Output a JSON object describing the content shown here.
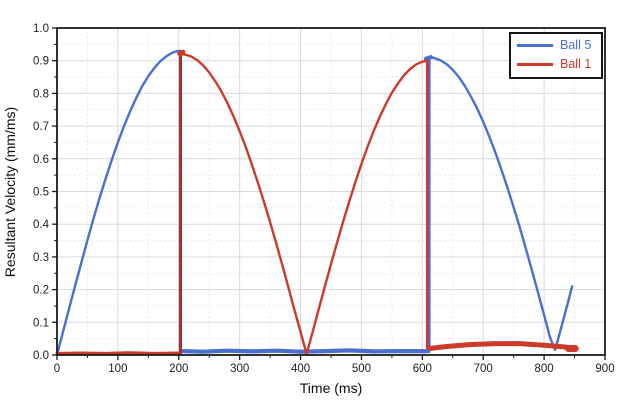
{
  "chart_data": {
    "type": "line",
    "xlabel": "Time (ms)",
    "ylabel": "Resultant Velocity (mm/ms)",
    "xlim": [
      0,
      900
    ],
    "ylim": [
      0,
      1.0
    ],
    "x_ticks": [
      0,
      100,
      200,
      300,
      400,
      500,
      600,
      700,
      800,
      900
    ],
    "y_ticks": [
      "0.0",
      "0.1",
      "0.2",
      "0.3",
      "0.4",
      "0.5",
      "0.6",
      "0.7",
      "0.8",
      "0.9",
      "1.0"
    ],
    "x_minor_step": 50,
    "y_minor_step": 0.05,
    "grid": "major-solid-minor-dotted",
    "legend_position": "top-right",
    "legend": {
      "items": [
        {
          "label": "Ball 5",
          "color": "#4a6fd1"
        },
        {
          "label": "Ball 1",
          "color": "#cd3a2a"
        }
      ]
    },
    "colors": {
      "ball5": "#4a6fd1",
      "ball1": "#cd3a2a",
      "spike_overlap": "#a83226",
      "grid_major": "#d7dade",
      "grid_minor": "#dfe4ee",
      "axis": "#1b1b1b",
      "tick_label": "#202020",
      "background": "#ffffff"
    },
    "series": [
      {
        "name": "Ball 5",
        "color": "#4a6fd1",
        "segments": [
          {
            "desc": "swing-down rise 0-203ms",
            "width": 2.4,
            "points": [
              [
                0,
                0
              ],
              [
                10,
                0.072
              ],
              [
                20,
                0.143
              ],
              [
                30,
                0.214
              ],
              [
                40,
                0.283
              ],
              [
                50,
                0.351
              ],
              [
                60,
                0.417
              ],
              [
                70,
                0.48
              ],
              [
                80,
                0.54
              ],
              [
                90,
                0.597
              ],
              [
                100,
                0.65
              ],
              [
                110,
                0.7
              ],
              [
                120,
                0.745
              ],
              [
                130,
                0.786
              ],
              [
                140,
                0.822
              ],
              [
                150,
                0.853
              ],
              [
                160,
                0.878
              ],
              [
                170,
                0.899
              ],
              [
                180,
                0.914
              ],
              [
                190,
                0.925
              ],
              [
                197,
                0.929
              ],
              [
                202,
                0.93
              ]
            ]
          },
          {
            "desc": "impact drop at 202ms",
            "width": 2.4,
            "points": [
              [
                202,
                0.93
              ],
              [
                202,
                0.012
              ]
            ]
          },
          {
            "desc": "rest band 204-610ms",
            "width": 4.2,
            "points": [
              [
                204,
                0.012
              ],
              [
                240,
                0.01
              ],
              [
                280,
                0.013
              ],
              [
                320,
                0.011
              ],
              [
                360,
                0.013
              ],
              [
                400,
                0.01
              ],
              [
                440,
                0.012
              ],
              [
                480,
                0.014
              ],
              [
                520,
                0.011
              ],
              [
                560,
                0.012
              ],
              [
                610,
                0.012
              ]
            ]
          },
          {
            "desc": "impact jump at 611ms",
            "width": 2.6,
            "points": [
              [
                611.5,
                0.013
              ],
              [
                611.5,
                0.91
              ]
            ]
          },
          {
            "desc": "cap blob at 611ms peak",
            "width": 4.2,
            "points": [
              [
                606,
                0.906
              ],
              [
                614,
                0.911
              ]
            ]
          },
          {
            "desc": "swing-up decay 612-818ms",
            "width": 2.4,
            "points": [
              [
                612,
                0.91
              ],
              [
                620,
                0.908
              ],
              [
                630,
                0.901
              ],
              [
                640,
                0.889
              ],
              [
                650,
                0.872
              ],
              [
                660,
                0.85
              ],
              [
                670,
                0.822
              ],
              [
                680,
                0.79
              ],
              [
                690,
                0.754
              ],
              [
                700,
                0.713
              ],
              [
                710,
                0.668
              ],
              [
                720,
                0.619
              ],
              [
                730,
                0.566
              ],
              [
                740,
                0.51
              ],
              [
                750,
                0.451
              ],
              [
                760,
                0.39
              ],
              [
                770,
                0.326
              ],
              [
                780,
                0.259
              ],
              [
                790,
                0.191
              ],
              [
                800,
                0.122
              ],
              [
                810,
                0.052
              ],
              [
                818,
                0.016
              ]
            ]
          },
          {
            "desc": "return rise 818-846ms",
            "width": 2.4,
            "points": [
              [
                818,
                0.016
              ],
              [
                825,
                0.062
              ],
              [
                832,
                0.111
              ],
              [
                839,
                0.16
              ],
              [
                846,
                0.21
              ]
            ]
          }
        ]
      },
      {
        "name": "Ball 1",
        "color": "#cd3a2a",
        "segments": [
          {
            "desc": "rest band 0-202ms",
            "width": 3,
            "points": [
              [
                0,
                0.005
              ],
              [
                40,
                0.006
              ],
              [
                80,
                0.005
              ],
              [
                120,
                0.007
              ],
              [
                160,
                0.005
              ],
              [
                202,
                0.006
              ]
            ]
          },
          {
            "desc": "impact spike at 202ms",
            "width": 3,
            "color": "#a83226",
            "points": [
              [
                202.8,
                0.006
              ],
              [
                202.8,
                0.922
              ]
            ]
          },
          {
            "desc": "cap blob at 202ms peak",
            "width": 4.5,
            "points": [
              [
                201,
                0.922
              ],
              [
                207,
                0.927
              ]
            ]
          },
          {
            "desc": "swing-up decay 204-410ms",
            "width": 2.4,
            "points": [
              [
                204,
                0.92
              ],
              [
                210,
                0.919
              ],
              [
                220,
                0.913
              ],
              [
                230,
                0.902
              ],
              [
                240,
                0.886
              ],
              [
                250,
                0.864
              ],
              [
                260,
                0.837
              ],
              [
                270,
                0.806
              ],
              [
                280,
                0.77
              ],
              [
                290,
                0.729
              ],
              [
                300,
                0.684
              ],
              [
                310,
                0.636
              ],
              [
                320,
                0.583
              ],
              [
                330,
                0.527
              ],
              [
                340,
                0.468
              ],
              [
                350,
                0.406
              ],
              [
                360,
                0.342
              ],
              [
                370,
                0.275
              ],
              [
                380,
                0.207
              ],
              [
                390,
                0.137
              ],
              [
                400,
                0.07
              ],
              [
                410,
                0.003
              ]
            ]
          },
          {
            "desc": "swing-down rise 410-608ms",
            "width": 2.4,
            "points": [
              [
                410,
                0.003
              ],
              [
                420,
                0.071
              ],
              [
                430,
                0.141
              ],
              [
                440,
                0.21
              ],
              [
                450,
                0.278
              ],
              [
                460,
                0.344
              ],
              [
                470,
                0.409
              ],
              [
                480,
                0.47
              ],
              [
                490,
                0.529
              ],
              [
                500,
                0.584
              ],
              [
                510,
                0.636
              ],
              [
                520,
                0.684
              ],
              [
                530,
                0.728
              ],
              [
                540,
                0.767
              ],
              [
                550,
                0.802
              ],
              [
                560,
                0.831
              ],
              [
                570,
                0.856
              ],
              [
                580,
                0.875
              ],
              [
                590,
                0.889
              ],
              [
                600,
                0.897
              ],
              [
                608,
                0.9
              ]
            ]
          },
          {
            "desc": "impact drop at 608ms",
            "width": 2.6,
            "points": [
              [
                608,
                0.9
              ],
              [
                608,
                0.022
              ]
            ]
          },
          {
            "desc": "residual band 612-850ms",
            "width": 5,
            "points": [
              [
                612,
                0.02
              ],
              [
                640,
                0.026
              ],
              [
                680,
                0.032
              ],
              [
                720,
                0.035
              ],
              [
                760,
                0.035
              ],
              [
                800,
                0.03
              ],
              [
                830,
                0.025
              ],
              [
                850,
                0.021
              ]
            ]
          },
          {
            "desc": "end blob ~850ms",
            "width": 7,
            "points": [
              [
                840,
                0.02
              ],
              [
                851,
                0.02
              ]
            ]
          }
        ]
      }
    ]
  }
}
